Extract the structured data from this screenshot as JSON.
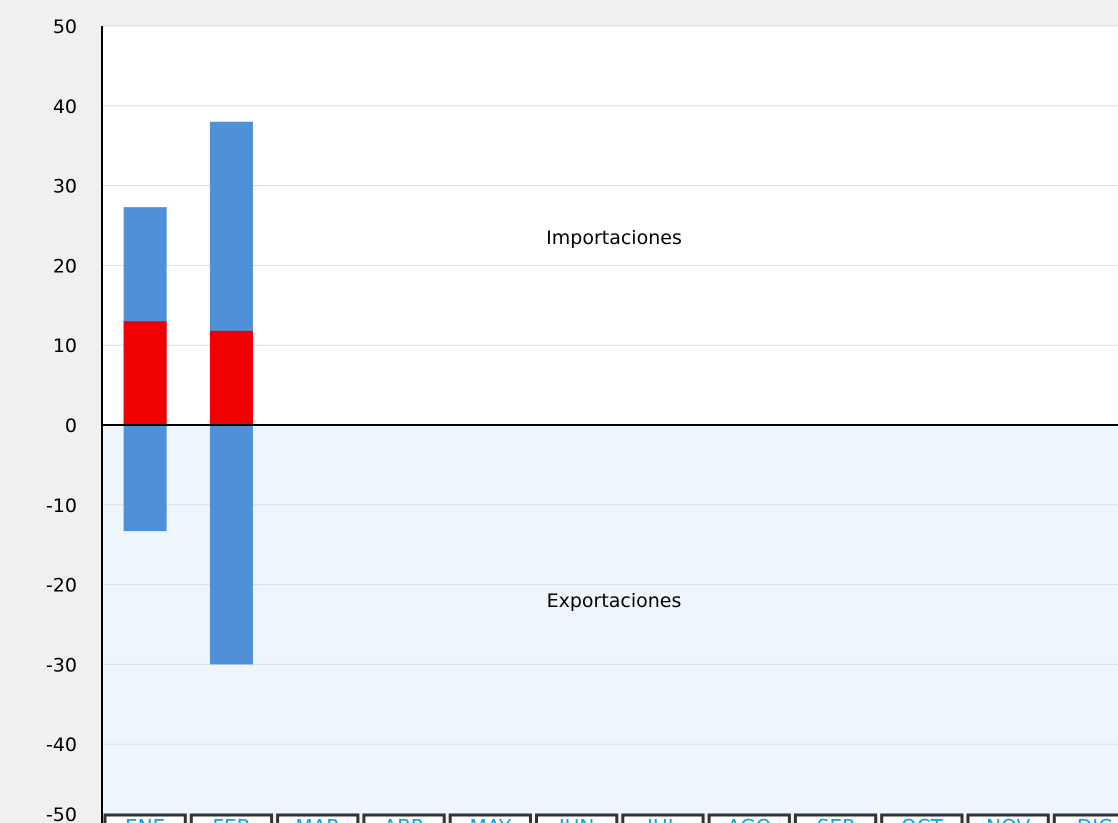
{
  "chart_data": {
    "type": "bar",
    "categories": [
      "ENE",
      "FEB",
      "MAR",
      "ABR",
      "MAY",
      "JUN",
      "JUL",
      "AGO",
      "SEP",
      "OCT",
      "NOV",
      "DIC"
    ],
    "series": [
      {
        "color": "#5090d8",
        "values": [
          27.3,
          38,
          null,
          null,
          null,
          null,
          null,
          null,
          null,
          null,
          null,
          null
        ]
      },
      {
        "color": "#f00000",
        "values": [
          13,
          11.8,
          null,
          null,
          null,
          null,
          null,
          null,
          null,
          null,
          null,
          null
        ]
      },
      {
        "color": "#5090d8",
        "values": [
          -13.3,
          -30,
          null,
          null,
          null,
          null,
          null,
          null,
          null,
          null,
          null,
          null
        ]
      }
    ],
    "annotations": [
      "Importaciones",
      "Exportaciones"
    ],
    "ylim": [
      -50,
      50
    ],
    "yticks": [
      -50,
      -40,
      -30,
      -20,
      -10,
      0,
      10,
      20,
      30,
      40,
      50
    ],
    "grid": true
  }
}
